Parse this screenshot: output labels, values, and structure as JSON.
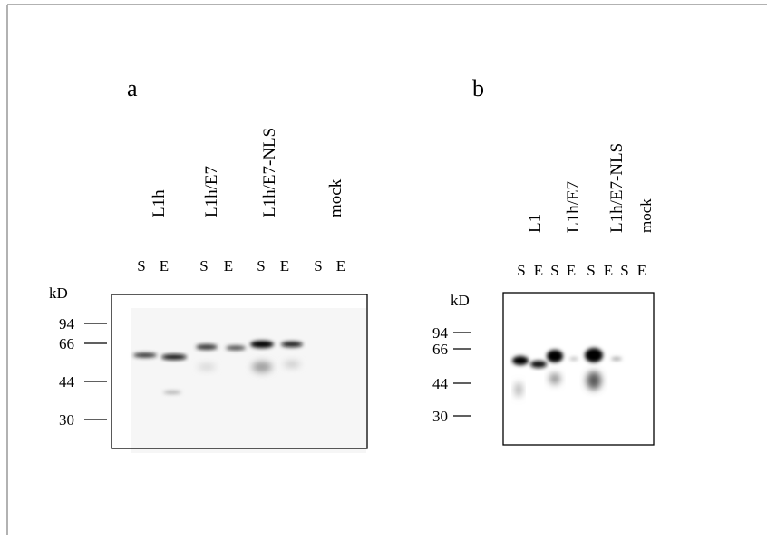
{
  "panels": [
    {
      "label": "a",
      "samples": [
        "L1h",
        "L1h/E7",
        "L1h/E7-NLS",
        "mock"
      ],
      "lanes": [
        "S",
        "E",
        "S",
        "E",
        "S",
        "E",
        "S",
        "E"
      ],
      "unit": "kD",
      "markers": [
        94,
        66,
        44,
        30
      ]
    },
    {
      "label": "b",
      "samples": [
        "L1",
        "L1h/E7",
        "L1h/E7-NLS",
        "mock"
      ],
      "lanes": [
        "S",
        "E",
        "S",
        "E",
        "S",
        "E",
        "S",
        "E"
      ],
      "unit": "kD",
      "markers": [
        94,
        66,
        44,
        30
      ]
    }
  ]
}
